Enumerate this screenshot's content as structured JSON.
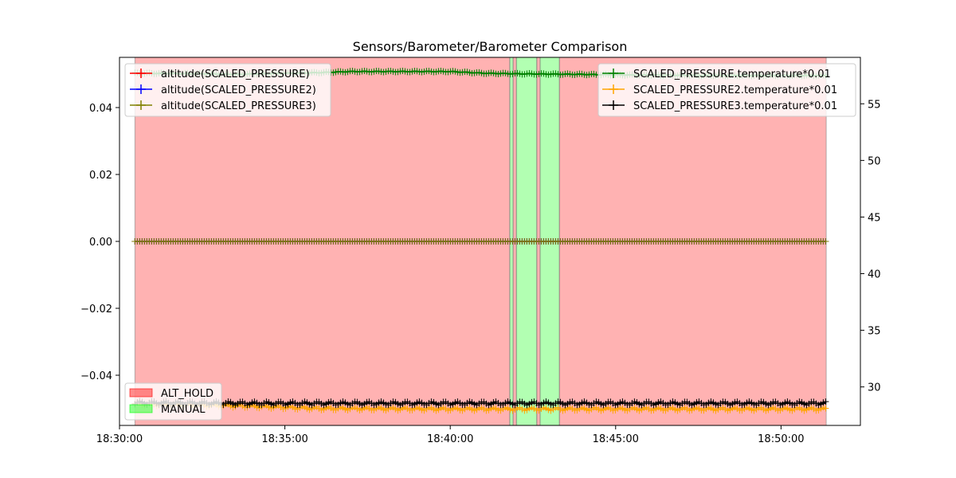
{
  "chart_data": {
    "type": "line",
    "title": "Sensors/Barometer/Barometer Comparison",
    "xlabel": "",
    "ylabel": "",
    "x_unit": "time",
    "xlim": [
      "18:30:00",
      "18:52:24"
    ],
    "x_ticks": [
      "18:30:00",
      "18:35:00",
      "18:40:00",
      "18:45:00",
      "18:50:00"
    ],
    "left_axis": {
      "ylim": [
        -0.055,
        0.055
      ],
      "ticks": [
        -0.04,
        -0.02,
        0.0,
        0.02,
        0.04
      ],
      "tick_labels": [
        "−0.04",
        "−0.02",
        "0.00",
        "0.02",
        "0.04"
      ]
    },
    "right_axis": {
      "ylim": [
        26.6,
        59.1
      ],
      "ticks": [
        30,
        35,
        40,
        45,
        50,
        55
      ],
      "tick_labels": [
        "30",
        "35",
        "40",
        "45",
        "50",
        "55"
      ]
    },
    "grid": false,
    "mode_bands": [
      {
        "mode": "ALT_HOLD",
        "start": "18:30:28",
        "end": "18:41:48",
        "color": "#ff0000"
      },
      {
        "mode": "MANUAL",
        "start": "18:41:48",
        "end": "18:41:54",
        "color": "#00ff00"
      },
      {
        "mode": "ALT_HOLD",
        "start": "18:41:54",
        "end": "18:42:00",
        "color": "#ff0000"
      },
      {
        "mode": "MANUAL",
        "start": "18:42:00",
        "end": "18:42:37",
        "color": "#00ff00"
      },
      {
        "mode": "ALT_HOLD",
        "start": "18:42:37",
        "end": "18:42:43",
        "color": "#ff0000"
      },
      {
        "mode": "MANUAL",
        "start": "18:42:43",
        "end": "18:43:18",
        "color": "#00ff00"
      },
      {
        "mode": "ALT_HOLD",
        "start": "18:43:18",
        "end": "18:51:22",
        "color": "#ff0000"
      }
    ],
    "series_left": [
      {
        "name": "altitude(SCALED_PRESSURE)",
        "color": "#ff0000",
        "x": [
          "18:30:28",
          "18:51:22"
        ],
        "y": [
          0.0,
          0.0
        ]
      },
      {
        "name": "altitude(SCALED_PRESSURE2)",
        "color": "#0000ff",
        "x": [
          "18:30:28",
          "18:51:22"
        ],
        "y": [
          0.0,
          0.0
        ]
      },
      {
        "name": "altitude(SCALED_PRESSURE3)",
        "color": "#808000",
        "x": [
          "18:30:28",
          "18:51:22"
        ],
        "y": [
          0.0,
          0.0
        ]
      }
    ],
    "series_right": [
      {
        "name": "SCALED_PRESSURE.temperature*0.01",
        "color": "#008000",
        "x": [
          "18:30:28",
          "18:32:30",
          "18:33:30",
          "18:36:00",
          "18:37:00",
          "18:40:00",
          "18:41:00",
          "18:42:00",
          "18:44:00",
          "18:45:00",
          "18:48:00",
          "18:51:22"
        ],
        "y": [
          57.7,
          57.65,
          57.6,
          57.75,
          57.85,
          57.85,
          57.7,
          57.65,
          57.6,
          57.55,
          57.5,
          57.5
        ]
      },
      {
        "name": "SCALED_PRESSURE2.temperature*0.01",
        "color": "#ffa500",
        "x": [
          "18:30:28",
          "18:32:30",
          "18:34:00",
          "18:36:00",
          "18:40:00",
          "18:45:00",
          "18:51:22"
        ],
        "y": [
          28.5,
          28.4,
          28.3,
          28.1,
          28.05,
          28.05,
          28.05
        ]
      },
      {
        "name": "SCALED_PRESSURE3.temperature*0.01",
        "color": "#000000",
        "x": [
          "18:30:28",
          "18:34:00",
          "18:38:00",
          "18:45:00",
          "18:51:22"
        ],
        "y": [
          28.6,
          28.55,
          28.55,
          28.55,
          28.55
        ]
      }
    ],
    "legends": {
      "left_series": [
        "altitude(SCALED_PRESSURE)",
        "altitude(SCALED_PRESSURE2)",
        "altitude(SCALED_PRESSURE3)"
      ],
      "right_series": [
        "SCALED_PRESSURE.temperature*0.01",
        "SCALED_PRESSURE2.temperature*0.01",
        "SCALED_PRESSURE3.temperature*0.01"
      ],
      "modes": [
        {
          "name": "ALT_HOLD",
          "color": "#ff0000"
        },
        {
          "name": "MANUAL",
          "color": "#00ff00"
        }
      ],
      "placement": {
        "left_series": "upper-left",
        "right_series": "upper-right",
        "modes": "lower-left"
      }
    }
  }
}
